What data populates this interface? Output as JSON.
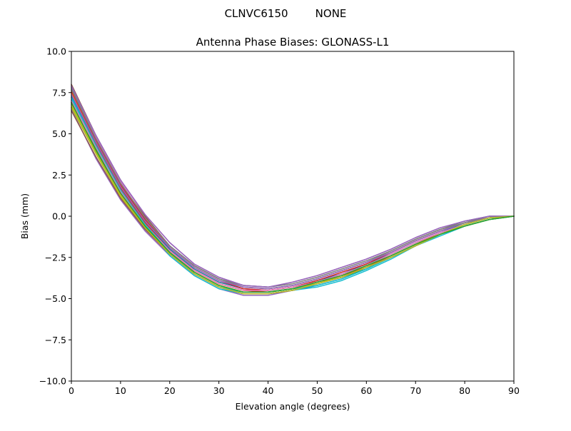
{
  "chart_data": {
    "type": "line",
    "suptitle": "CLNVC6150        NONE",
    "title": "Antenna Phase Biases: GLONASS-L1",
    "xlabel": "Elevation angle (degrees)",
    "ylabel": "Bias (mm)",
    "xlim": [
      0,
      90
    ],
    "ylim": [
      -10,
      10
    ],
    "xticks": [
      0,
      10,
      20,
      30,
      40,
      50,
      60,
      70,
      80,
      90
    ],
    "yticks": [
      10.0,
      7.5,
      5.0,
      2.5,
      0.0,
      -2.5,
      -5.0,
      -7.5,
      -10.0
    ],
    "xtick_labels": [
      "0",
      "10",
      "20",
      "30",
      "40",
      "50",
      "60",
      "70",
      "80",
      "90"
    ],
    "ytick_labels": [
      "10.0",
      "7.5",
      "5.0",
      "2.5",
      "0.0",
      "−2.5",
      "−5.0",
      "−7.5",
      "−10.0"
    ],
    "grid": false,
    "x": [
      0,
      5,
      10,
      15,
      20,
      25,
      30,
      35,
      40,
      45,
      50,
      55,
      60,
      65,
      70,
      75,
      80,
      85,
      90
    ],
    "series": [
      {
        "color": "#1f77b4",
        "values": [
          7.0,
          4.3,
          1.6,
          -0.6,
          -2.3,
          -3.5,
          -4.3,
          -4.7,
          -4.7,
          -4.5,
          -4.2,
          -3.8,
          -3.2,
          -2.5,
          -1.8,
          -1.1,
          -0.5,
          -0.1,
          0.0
        ]
      },
      {
        "color": "#ff7f0e",
        "values": [
          7.5,
          4.6,
          1.9,
          -0.3,
          -2.0,
          -3.2,
          -4.0,
          -4.4,
          -4.5,
          -4.3,
          -4.0,
          -3.6,
          -3.0,
          -2.4,
          -1.7,
          -1.0,
          -0.5,
          -0.1,
          0.0
        ]
      },
      {
        "color": "#2ca02c",
        "values": [
          6.8,
          4.1,
          1.4,
          -0.6,
          -2.2,
          -3.4,
          -4.2,
          -4.6,
          -4.6,
          -4.4,
          -4.1,
          -3.7,
          -3.2,
          -2.5,
          -1.8,
          -1.1,
          -0.5,
          -0.1,
          0.0
        ]
      },
      {
        "color": "#d62728",
        "values": [
          7.2,
          4.4,
          1.7,
          -0.4,
          -2.1,
          -3.3,
          -4.1,
          -4.5,
          -4.6,
          -4.4,
          -4.0,
          -3.6,
          -3.1,
          -2.4,
          -1.7,
          -1.1,
          -0.5,
          -0.1,
          0.0
        ]
      },
      {
        "color": "#9467bd",
        "values": [
          6.5,
          3.5,
          1.0,
          -0.9,
          -2.4,
          -3.6,
          -4.4,
          -4.8,
          -4.8,
          -4.5,
          -4.1,
          -3.7,
          -3.1,
          -2.5,
          -1.8,
          -1.1,
          -0.5,
          -0.1,
          0.0
        ]
      },
      {
        "color": "#8c564b",
        "values": [
          8.0,
          4.9,
          2.2,
          0.0,
          -1.8,
          -3.0,
          -3.8,
          -4.3,
          -4.4,
          -4.2,
          -3.8,
          -3.3,
          -2.8,
          -2.2,
          -1.5,
          -0.9,
          -0.4,
          0.0,
          0.0
        ]
      },
      {
        "color": "#e377c2",
        "values": [
          7.9,
          4.8,
          2.1,
          0.1,
          -1.6,
          -2.9,
          -3.7,
          -4.2,
          -4.3,
          -4.0,
          -3.6,
          -3.1,
          -2.6,
          -2.0,
          -1.3,
          -0.7,
          -0.3,
          0.0,
          0.0
        ]
      },
      {
        "color": "#7f7f7f",
        "values": [
          7.8,
          4.7,
          2.0,
          -0.1,
          -1.8,
          -3.0,
          -3.8,
          -4.3,
          -4.4,
          -4.2,
          -3.8,
          -3.3,
          -2.8,
          -2.1,
          -1.4,
          -0.8,
          -0.3,
          0.0,
          0.0
        ]
      },
      {
        "color": "#bcbd22",
        "values": [
          6.7,
          3.9,
          1.3,
          -0.7,
          -2.2,
          -3.4,
          -4.2,
          -4.6,
          -4.6,
          -4.4,
          -4.0,
          -3.6,
          -3.0,
          -2.4,
          -1.7,
          -1.1,
          -0.5,
          -0.1,
          0.0
        ]
      },
      {
        "color": "#17becf",
        "values": [
          7.1,
          4.2,
          1.5,
          -0.6,
          -2.4,
          -3.6,
          -4.4,
          -4.7,
          -4.7,
          -4.5,
          -4.3,
          -3.9,
          -3.3,
          -2.6,
          -1.8,
          -1.2,
          -0.6,
          -0.2,
          0.0
        ]
      },
      {
        "color": "#1f77b4",
        "values": [
          7.3,
          4.5,
          1.8,
          -0.3,
          -2.0,
          -3.2,
          -4.0,
          -4.4,
          -4.5,
          -4.3,
          -3.9,
          -3.5,
          -2.9,
          -2.3,
          -1.6,
          -1.0,
          -0.4,
          -0.1,
          0.0
        ]
      },
      {
        "color": "#ff7f0e",
        "values": [
          6.9,
          4.0,
          1.4,
          -0.5,
          -2.1,
          -3.3,
          -4.1,
          -4.5,
          -4.5,
          -4.3,
          -4.0,
          -3.6,
          -3.0,
          -2.4,
          -1.7,
          -1.1,
          -0.5,
          -0.1,
          0.0
        ]
      },
      {
        "color": "#2ca02c",
        "values": [
          6.6,
          3.8,
          1.2,
          -0.7,
          -2.3,
          -3.5,
          -4.3,
          -4.6,
          -4.6,
          -4.4,
          -4.1,
          -3.7,
          -3.1,
          -2.5,
          -1.8,
          -1.1,
          -0.6,
          -0.2,
          0.0
        ]
      },
      {
        "color": "#d62728",
        "values": [
          7.6,
          4.6,
          1.9,
          -0.2,
          -1.9,
          -3.1,
          -3.9,
          -4.4,
          -4.5,
          -4.3,
          -3.9,
          -3.4,
          -2.9,
          -2.2,
          -1.5,
          -0.9,
          -0.4,
          -0.1,
          0.0
        ]
      },
      {
        "color": "#9467bd",
        "values": [
          7.4,
          4.5,
          1.8,
          -0.3,
          -1.9,
          -3.1,
          -3.9,
          -4.3,
          -4.4,
          -4.2,
          -3.8,
          -3.3,
          -2.8,
          -2.2,
          -1.5,
          -0.9,
          -0.4,
          -0.1,
          0.0
        ]
      },
      {
        "color": "#8c564b",
        "values": [
          6.4,
          3.6,
          1.1,
          -0.8,
          -2.3,
          -3.5,
          -4.3,
          -4.7,
          -4.7,
          -4.5,
          -4.1,
          -3.7,
          -3.1,
          -2.5,
          -1.8,
          -1.1,
          -0.5,
          -0.1,
          0.0
        ]
      },
      {
        "color": "#e377c2",
        "values": [
          7.0,
          4.2,
          1.5,
          -0.5,
          -2.1,
          -3.3,
          -4.1,
          -4.5,
          -4.5,
          -4.3,
          -4.0,
          -3.5,
          -3.0,
          -2.3,
          -1.6,
          -1.0,
          -0.5,
          -0.1,
          0.0
        ]
      },
      {
        "color": "#7f7f7f",
        "values": [
          7.7,
          4.7,
          2.0,
          -0.1,
          -1.8,
          -3.0,
          -3.8,
          -4.2,
          -4.3,
          -4.1,
          -3.7,
          -3.2,
          -2.7,
          -2.1,
          -1.4,
          -0.8,
          -0.4,
          0.0,
          0.0
        ]
      },
      {
        "color": "#bcbd22",
        "values": [
          6.8,
          3.9,
          1.3,
          -0.6,
          -2.2,
          -3.4,
          -4.2,
          -4.6,
          -4.6,
          -4.4,
          -4.1,
          -3.6,
          -3.0,
          -2.4,
          -1.7,
          -1.1,
          -0.5,
          -0.1,
          0.0
        ]
      },
      {
        "color": "#17becf",
        "values": [
          7.2,
          4.3,
          1.6,
          -0.5,
          -2.2,
          -3.5,
          -4.3,
          -4.6,
          -4.6,
          -4.4,
          -4.2,
          -3.8,
          -3.2,
          -2.5,
          -1.8,
          -1.1,
          -0.5,
          -0.1,
          0.0
        ]
      },
      {
        "color": "#9467bd",
        "values": [
          7.9,
          4.9,
          2.2,
          0.1,
          -1.6,
          -2.9,
          -3.7,
          -4.2,
          -4.3,
          -4.0,
          -3.6,
          -3.1,
          -2.6,
          -2.0,
          -1.3,
          -0.7,
          -0.3,
          0.0,
          0.0
        ]
      },
      {
        "color": "#bcbd22",
        "values": [
          6.6,
          3.8,
          1.2,
          -0.7,
          -2.3,
          -3.5,
          -4.3,
          -4.7,
          -4.7,
          -4.5,
          -4.1,
          -3.7,
          -3.1,
          -2.5,
          -1.8,
          -1.1,
          -0.5,
          -0.1,
          0.0
        ]
      },
      {
        "color": "#2ca02c",
        "values": [
          6.9,
          4.0,
          1.4,
          -0.6,
          -2.2,
          -3.4,
          -4.2,
          -4.6,
          -4.6,
          -4.4,
          -4.0,
          -3.6,
          -3.0,
          -2.4,
          -1.7,
          -1.1,
          -0.6,
          -0.2,
          0.0
        ]
      }
    ]
  }
}
